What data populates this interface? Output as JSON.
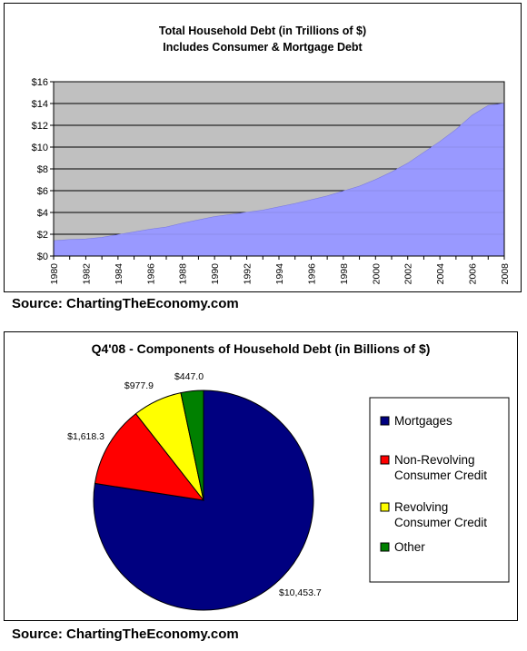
{
  "chart_data": [
    {
      "type": "area",
      "title": "Total Household Debt (in Trillions of $)",
      "subtitle": "Includes Consumer & Mortgage Debt",
      "x": [
        1980,
        1981,
        1982,
        1983,
        1984,
        1985,
        1986,
        1987,
        1988,
        1989,
        1990,
        1991,
        1992,
        1993,
        1994,
        1995,
        1996,
        1997,
        1998,
        1999,
        2000,
        2001,
        2002,
        2003,
        2004,
        2005,
        2006,
        2007,
        2008
      ],
      "values": [
        1.4,
        1.5,
        1.55,
        1.7,
        1.95,
        2.2,
        2.45,
        2.65,
        3.0,
        3.3,
        3.6,
        3.8,
        4.0,
        4.2,
        4.5,
        4.8,
        5.15,
        5.5,
        5.95,
        6.4,
        7.0,
        7.7,
        8.5,
        9.5,
        10.5,
        11.6,
        12.9,
        13.8,
        14.0
      ],
      "x_tick_labels": [
        "1980",
        "1982",
        "1984",
        "1986",
        "1988",
        "1990",
        "1992",
        "1994",
        "1996",
        "1998",
        "2000",
        "2002",
        "2004",
        "2006",
        "2008"
      ],
      "y_tick_labels": [
        "$0",
        "$2",
        "$4",
        "$6",
        "$8",
        "$10",
        "$12",
        "$14",
        "$16"
      ],
      "ylim": [
        0,
        16
      ],
      "xlim": [
        1980,
        2008
      ],
      "grid": true,
      "colors": {
        "fill": "#9999ff",
        "plot_bg": "#c0c0c0"
      }
    },
    {
      "type": "pie",
      "title": "Q4'08 - Components of Household Debt (in Billions of $)",
      "slices": [
        {
          "label": "Mortgages",
          "value": 10453.7,
          "data_label": "$10,453.7",
          "color": "#000080"
        },
        {
          "label": "Non-Revolving Consumer Credit",
          "value": 1618.3,
          "data_label": "$1,618.3",
          "color": "#ff0000"
        },
        {
          "label": "Revolving Consumer Credit",
          "value": 977.9,
          "data_label": "$977.9",
          "color": "#ffff00"
        },
        {
          "label": "Other",
          "value": 447.0,
          "data_label": "$447.0",
          "color": "#008000"
        }
      ],
      "legend_lines": [
        [
          "Mortgages"
        ],
        [
          "Non-Revolving",
          "Consumer Credit"
        ],
        [
          "Revolving",
          "Consumer Credit"
        ],
        [
          "Other"
        ]
      ],
      "legend_placement": "right"
    }
  ],
  "source_top": "Source: ChartingTheEconomy.com",
  "source_bottom": "Source: ChartingTheEconomy.com"
}
